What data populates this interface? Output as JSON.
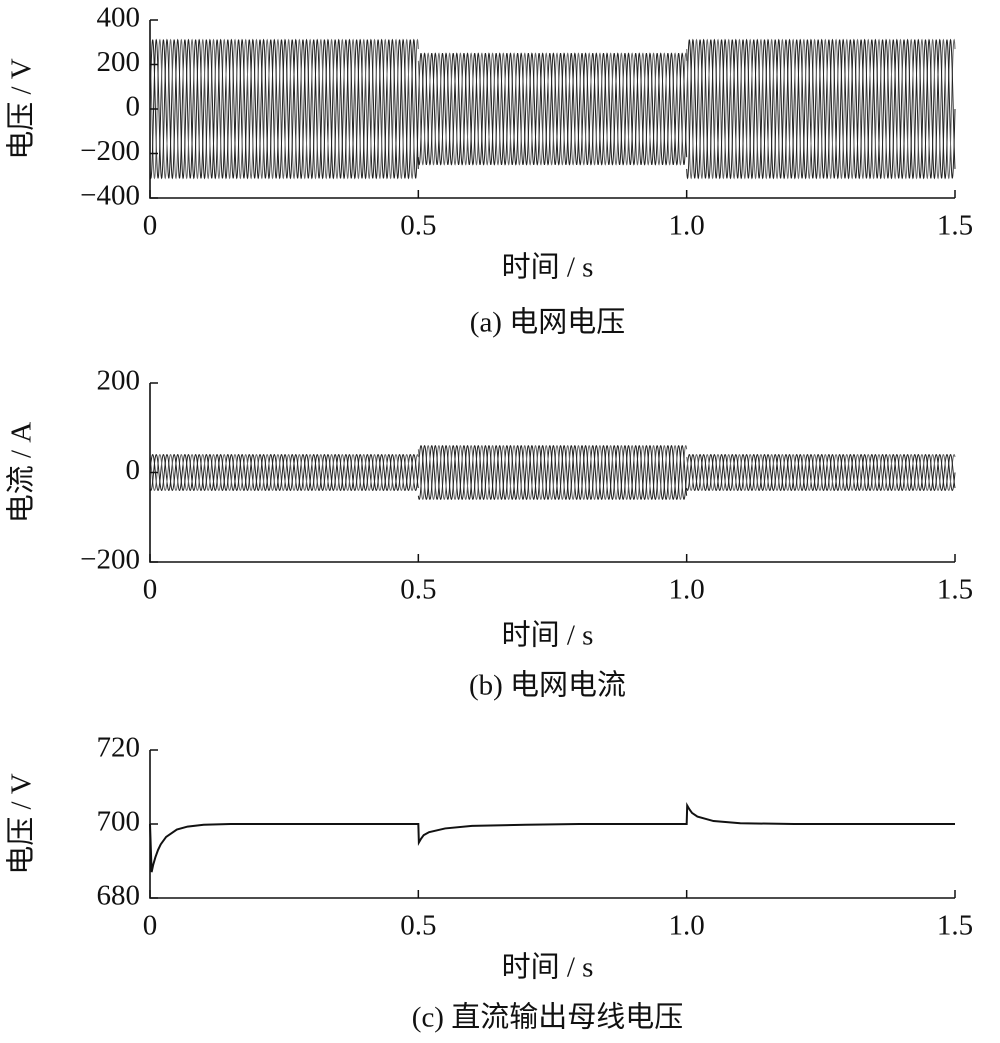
{
  "chart_data": [
    {
      "type": "waveform",
      "ylabel": "电压 / V",
      "xlabel": "时间 / s",
      "caption": "(a)  电网电压",
      "x_segments": [
        0,
        0.5,
        1.0,
        1.5
      ],
      "amplitude": [
        311,
        250,
        311
      ],
      "frequency": 50,
      "phase_count": 3,
      "color": "#222",
      "xlim": [
        0,
        1.5
      ],
      "xticks": [
        0,
        0.5,
        {
          "value": 1.0,
          "label": "1.0"
        },
        1.5
      ],
      "ylim": [
        -400,
        400
      ],
      "yticks": [
        {
          "value": -400,
          "label": "−400"
        },
        {
          "value": -200,
          "label": "−200"
        },
        0,
        200,
        400
      ]
    },
    {
      "type": "waveform",
      "ylabel": "电流 / A",
      "xlabel": "时间 / s",
      "caption": "(b)  电网电流",
      "x_segments": [
        0,
        0.5,
        1.0,
        1.5
      ],
      "amplitude": [
        40,
        60,
        40
      ],
      "frequency": 50,
      "phase_count": 3,
      "color": "#222",
      "xlim": [
        0,
        1.5
      ],
      "xticks": [
        0,
        0.5,
        {
          "value": 1.0,
          "label": "1.0"
        },
        1.5
      ],
      "ylim": [
        -200,
        200
      ],
      "yticks": [
        {
          "value": -200,
          "label": "−200"
        },
        0,
        200
      ]
    },
    {
      "type": "line",
      "ylabel": "电压 / V",
      "xlabel": "时间 / s",
      "caption": "(c)  直流输出母线电压",
      "color": "#111",
      "x": [
        0,
        0.003,
        0.006,
        0.01,
        0.015,
        0.02,
        0.03,
        0.05,
        0.07,
        0.1,
        0.15,
        0.2,
        0.3,
        0.4,
        0.5,
        0.501,
        0.505,
        0.51,
        0.52,
        0.55,
        0.6,
        0.7,
        0.8,
        0.9,
        1.0,
        1.001,
        1.005,
        1.01,
        1.02,
        1.05,
        1.1,
        1.2,
        1.3,
        1.5
      ],
      "values": [
        700,
        687,
        689,
        691,
        693,
        694.5,
        696.5,
        698.5,
        699.3,
        699.8,
        700,
        700,
        700,
        700,
        700,
        695,
        696,
        697,
        697.8,
        698.8,
        699.5,
        699.8,
        700,
        700,
        700,
        705,
        704,
        703,
        702,
        700.8,
        700.2,
        700,
        700,
        700
      ],
      "xlim": [
        0,
        1.5
      ],
      "xticks": [
        0,
        0.5,
        {
          "value": 1.0,
          "label": "1.0"
        },
        1.5
      ],
      "ylim": [
        680,
        720
      ],
      "yticks": [
        680,
        700,
        720
      ]
    }
  ]
}
